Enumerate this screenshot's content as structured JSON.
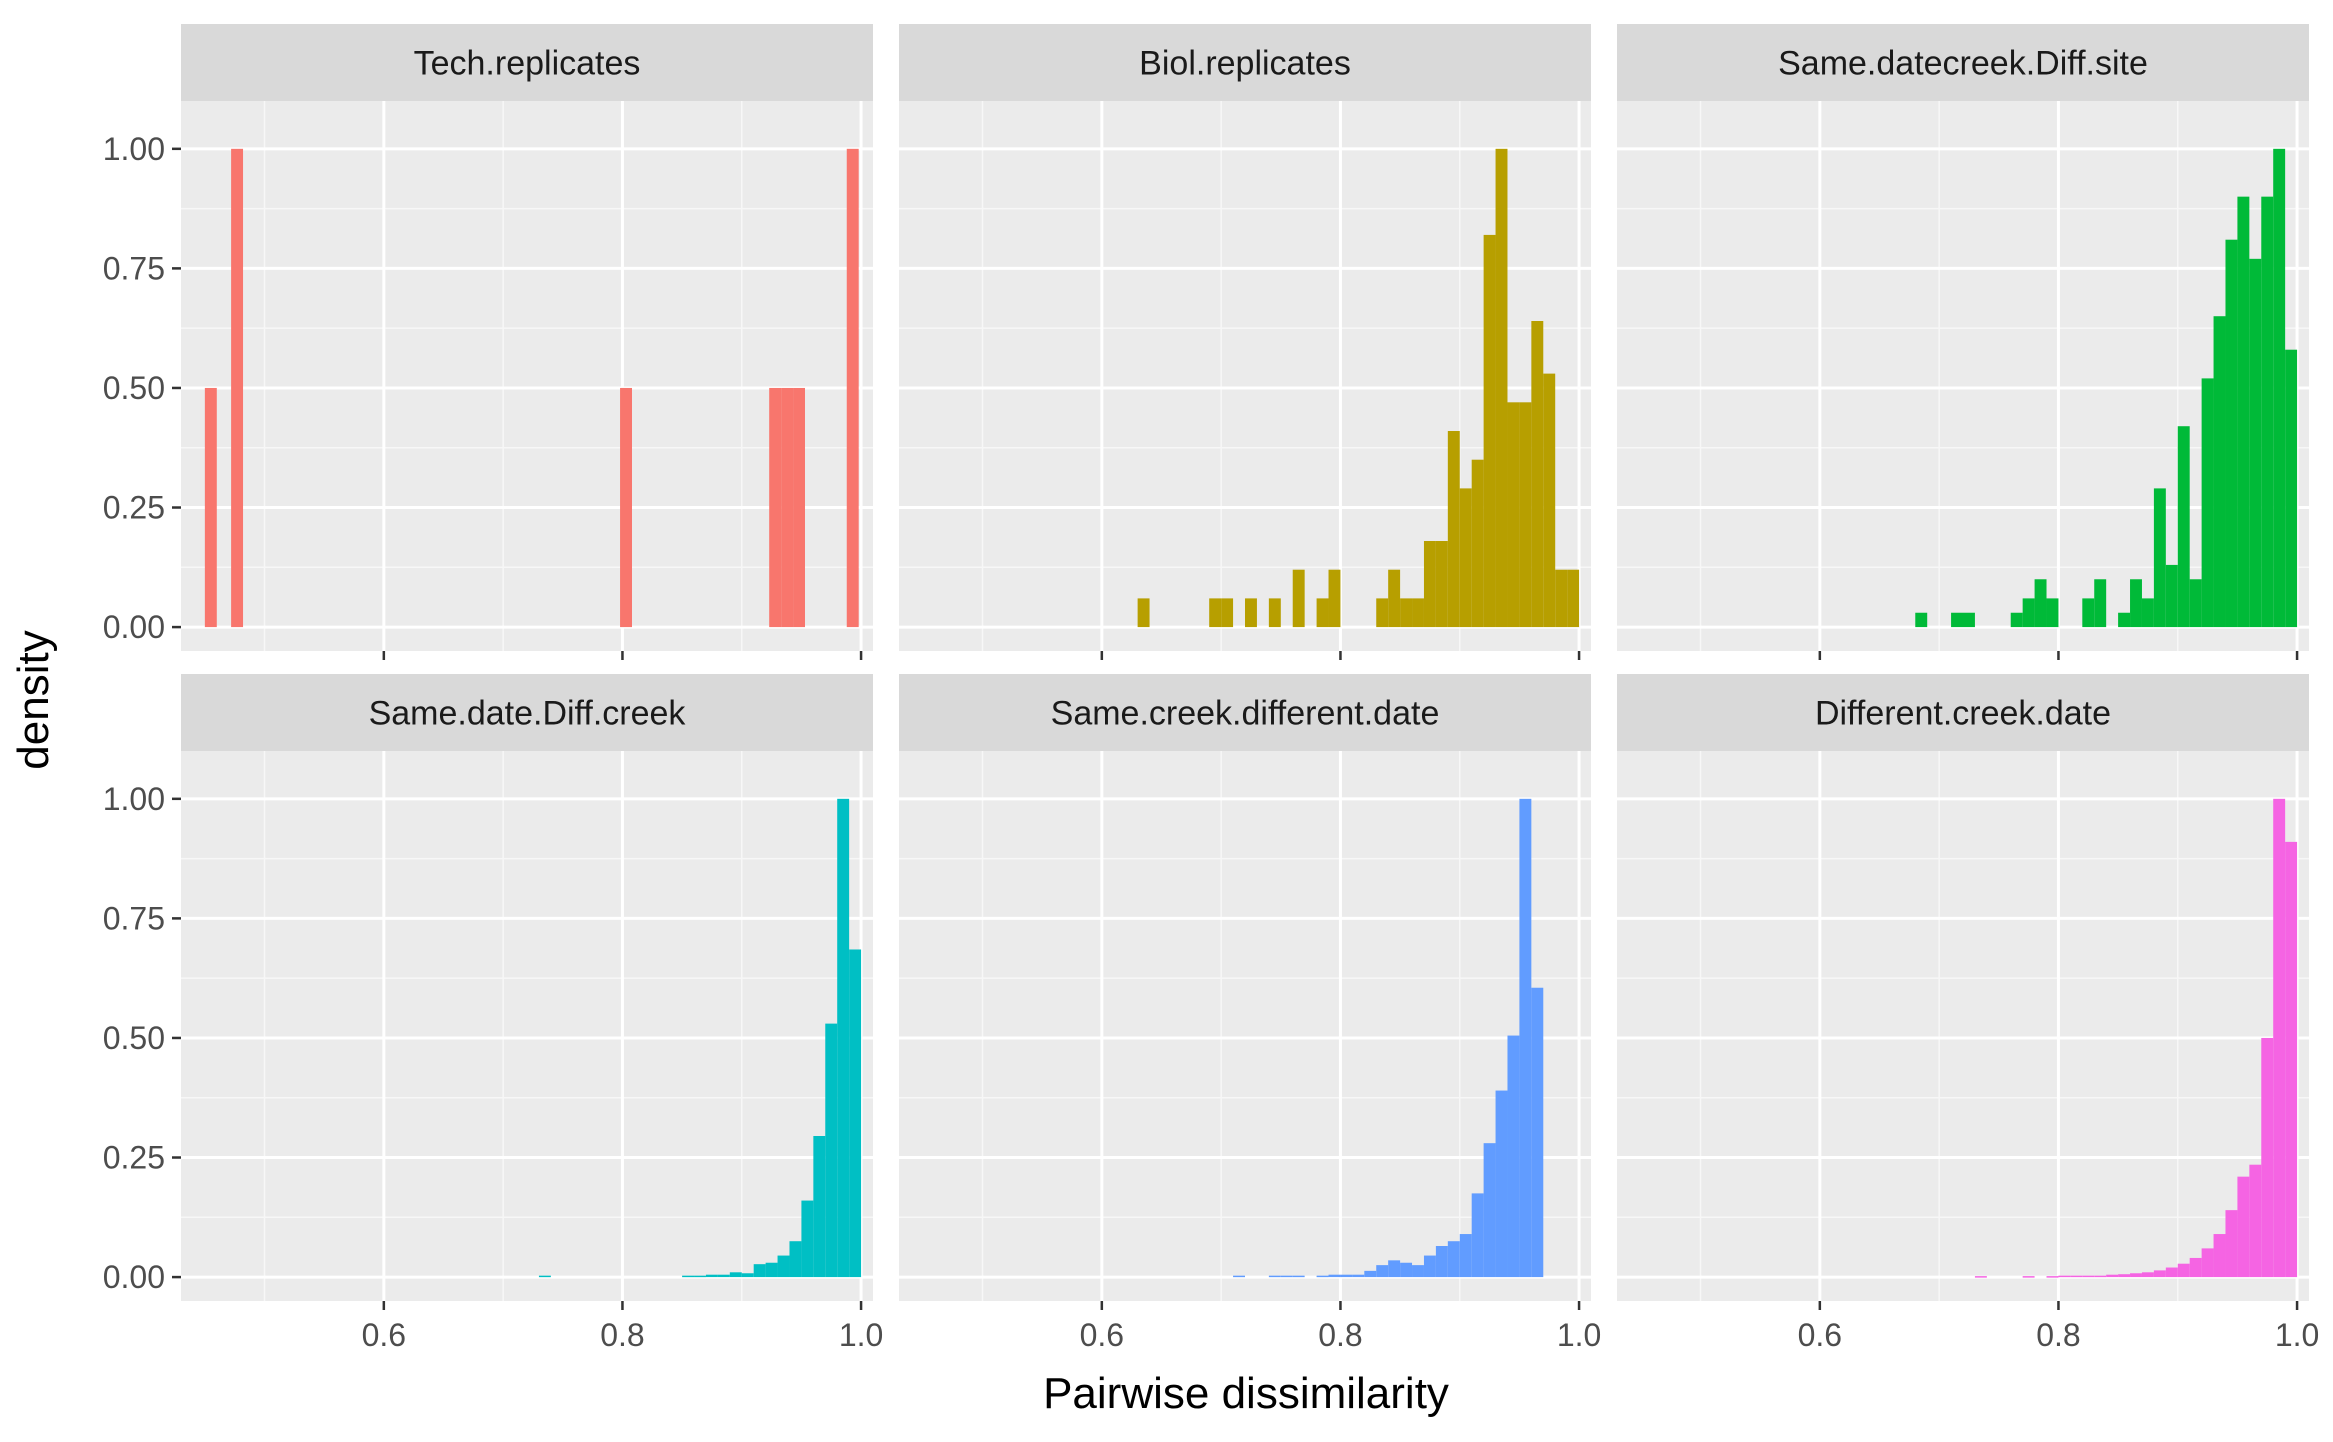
{
  "chart_data": {
    "type": "bar",
    "title": "",
    "xlabel": "Pairwise dissimilarity",
    "ylabel": "density",
    "xlim": [
      0.43,
      1.01
    ],
    "ylim": [
      -0.05,
      1.1
    ],
    "x_ticks": [
      0.6,
      0.8,
      1.0
    ],
    "x_tick_labels": [
      "0.6",
      "0.8",
      "1.0"
    ],
    "y_ticks": [
      0,
      0.25,
      0.5,
      0.75,
      1.0
    ],
    "y_tick_labels": [
      "0.00",
      "0.25",
      "0.50",
      "0.75",
      "1.00"
    ],
    "grid": true,
    "legend": "none",
    "bin_width": 0.01,
    "facets": [
      {
        "name": "Tech.replicates",
        "color": "#F8766D",
        "bins": [
          [
            0.455,
            0.5
          ],
          [
            0.477,
            1.0
          ],
          [
            0.803,
            0.5
          ],
          [
            0.928,
            0.5
          ],
          [
            0.938,
            0.5
          ],
          [
            0.948,
            0.5
          ],
          [
            0.993,
            1.0
          ]
        ]
      },
      {
        "name": "Biol.replicates",
        "color": "#B79F00",
        "bins": [
          [
            0.635,
            0.06
          ],
          [
            0.695,
            0.06
          ],
          [
            0.705,
            0.06
          ],
          [
            0.725,
            0.06
          ],
          [
            0.745,
            0.06
          ],
          [
            0.765,
            0.12
          ],
          [
            0.785,
            0.06
          ],
          [
            0.795,
            0.12
          ],
          [
            0.835,
            0.06
          ],
          [
            0.845,
            0.12
          ],
          [
            0.855,
            0.06
          ],
          [
            0.865,
            0.06
          ],
          [
            0.875,
            0.18
          ],
          [
            0.885,
            0.18
          ],
          [
            0.895,
            0.41
          ],
          [
            0.905,
            0.29
          ],
          [
            0.915,
            0.35
          ],
          [
            0.925,
            0.82
          ],
          [
            0.935,
            1.0
          ],
          [
            0.945,
            0.47
          ],
          [
            0.955,
            0.47
          ],
          [
            0.965,
            0.64
          ],
          [
            0.975,
            0.53
          ],
          [
            0.985,
            0.12
          ],
          [
            0.995,
            0.12
          ],
          [
            1.005,
            0.0
          ]
        ]
      },
      {
        "name": "Same.datecreek.Diff.site",
        "color": "#00BA38",
        "bins": [
          [
            0.685,
            0.03
          ],
          [
            0.715,
            0.03
          ],
          [
            0.725,
            0.03
          ],
          [
            0.765,
            0.03
          ],
          [
            0.775,
            0.06
          ],
          [
            0.785,
            0.1
          ],
          [
            0.795,
            0.06
          ],
          [
            0.825,
            0.06
          ],
          [
            0.835,
            0.1
          ],
          [
            0.855,
            0.03
          ],
          [
            0.865,
            0.1
          ],
          [
            0.875,
            0.06
          ],
          [
            0.885,
            0.29
          ],
          [
            0.895,
            0.13
          ],
          [
            0.905,
            0.42
          ],
          [
            0.915,
            0.1
          ],
          [
            0.925,
            0.52
          ],
          [
            0.935,
            0.65
          ],
          [
            0.945,
            0.81
          ],
          [
            0.955,
            0.9
          ],
          [
            0.965,
            0.77
          ],
          [
            0.975,
            0.9
          ],
          [
            0.985,
            1.0
          ],
          [
            0.995,
            0.58
          ]
        ]
      },
      {
        "name": "Same.date.Diff.creek",
        "color": "#00BFC4",
        "bins": [
          [
            0.735,
            0.003
          ],
          [
            0.855,
            0.003
          ],
          [
            0.865,
            0.003
          ],
          [
            0.875,
            0.005
          ],
          [
            0.885,
            0.005
          ],
          [
            0.895,
            0.01
          ],
          [
            0.905,
            0.008
          ],
          [
            0.915,
            0.027
          ],
          [
            0.925,
            0.03
          ],
          [
            0.935,
            0.045
          ],
          [
            0.945,
            0.075
          ],
          [
            0.955,
            0.16
          ],
          [
            0.965,
            0.295
          ],
          [
            0.975,
            0.53
          ],
          [
            0.985,
            1.0
          ],
          [
            0.995,
            0.685
          ]
        ]
      },
      {
        "name": "Same.creek.different.date",
        "color": "#619CFF",
        "bins": [
          [
            0.715,
            0.003
          ],
          [
            0.745,
            0.003
          ],
          [
            0.755,
            0.003
          ],
          [
            0.765,
            0.003
          ],
          [
            0.785,
            0.003
          ],
          [
            0.795,
            0.005
          ],
          [
            0.805,
            0.005
          ],
          [
            0.815,
            0.005
          ],
          [
            0.825,
            0.013
          ],
          [
            0.835,
            0.025
          ],
          [
            0.845,
            0.035
          ],
          [
            0.855,
            0.03
          ],
          [
            0.865,
            0.025
          ],
          [
            0.875,
            0.045
          ],
          [
            0.885,
            0.065
          ],
          [
            0.895,
            0.075
          ],
          [
            0.905,
            0.09
          ],
          [
            0.915,
            0.175
          ],
          [
            0.925,
            0.28
          ],
          [
            0.935,
            0.39
          ],
          [
            0.945,
            0.505
          ],
          [
            0.955,
            1.0
          ],
          [
            0.965,
            0.605
          ]
        ]
      },
      {
        "name": "Different.creek.date",
        "color": "#F564E3",
        "bins": [
          [
            0.735,
            0.002
          ],
          [
            0.775,
            0.002
          ],
          [
            0.795,
            0.002
          ],
          [
            0.805,
            0.003
          ],
          [
            0.815,
            0.003
          ],
          [
            0.825,
            0.003
          ],
          [
            0.835,
            0.003
          ],
          [
            0.845,
            0.005
          ],
          [
            0.855,
            0.006
          ],
          [
            0.865,
            0.008
          ],
          [
            0.875,
            0.01
          ],
          [
            0.885,
            0.014
          ],
          [
            0.895,
            0.02
          ],
          [
            0.905,
            0.028
          ],
          [
            0.915,
            0.04
          ],
          [
            0.925,
            0.06
          ],
          [
            0.935,
            0.09
          ],
          [
            0.945,
            0.14
          ],
          [
            0.955,
            0.21
          ],
          [
            0.965,
            0.235
          ],
          [
            0.975,
            0.5
          ],
          [
            0.985,
            1.0
          ],
          [
            0.995,
            0.91
          ]
        ]
      }
    ]
  }
}
